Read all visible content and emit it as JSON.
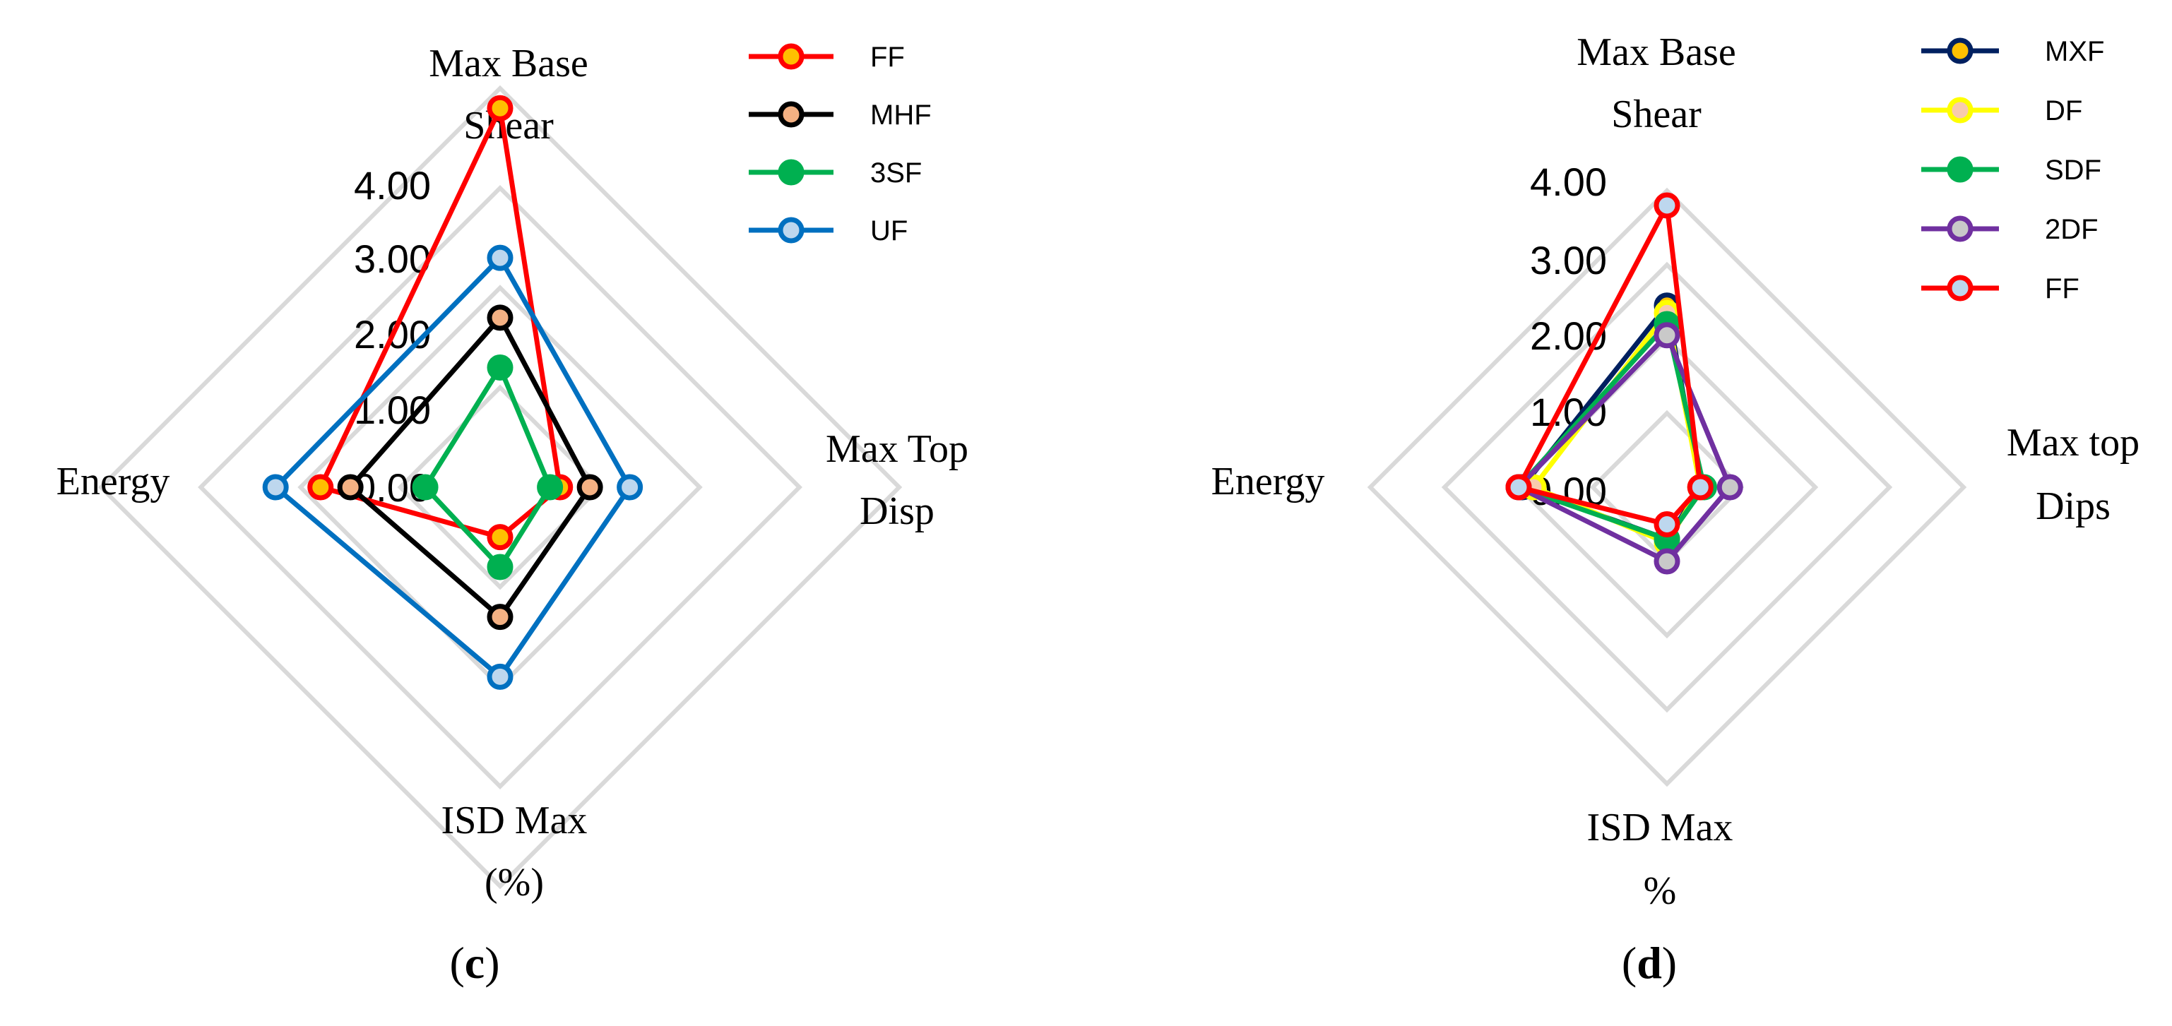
{
  "chart_data": [
    {
      "type": "radar",
      "panel_label": "c",
      "axes": [
        "Max Base Shear",
        "Max Top Disp",
        "ISD Max (%)",
        "Energy"
      ],
      "axis_label_lines": [
        [
          "Max Base",
          "Shear"
        ],
        [
          "Max Top",
          "Disp"
        ],
        [
          "ISD Max",
          "(%)"
        ],
        [
          "Energy"
        ]
      ],
      "rlim": [
        0,
        4
      ],
      "ticks": [
        "0.00",
        "1.00",
        "2.00",
        "3.00",
        "4.00"
      ],
      "grid": true,
      "legend_position": "top-right",
      "series": [
        {
          "name": "FF",
          "values": [
            3.8,
            0.6,
            0.5,
            1.8
          ],
          "line_color": "#ff0000",
          "marker_fill": "#ffc000"
        },
        {
          "name": "MHF",
          "values": [
            1.7,
            0.9,
            1.3,
            1.5
          ],
          "line_color": "#000000",
          "marker_fill": "#f4b183"
        },
        {
          "name": "3SF",
          "values": [
            1.2,
            0.5,
            0.8,
            0.75
          ],
          "line_color": "#00b050",
          "marker_fill": "#00b050"
        },
        {
          "name": "UF",
          "values": [
            2.3,
            1.3,
            1.9,
            2.25
          ],
          "line_color": "#0070c0",
          "marker_fill": "#bdd7ee"
        }
      ]
    },
    {
      "type": "radar",
      "panel_label": "d",
      "axes": [
        "Max Base Shear",
        "Max top Dips",
        "ISD Max %",
        "Energy"
      ],
      "axis_label_lines": [
        [
          "Max Base",
          "Shear"
        ],
        [
          "Max top",
          "Dips"
        ],
        [
          "ISD Max",
          "%"
        ],
        [
          "Energy"
        ]
      ],
      "rlim": [
        0,
        4
      ],
      "ticks": [
        "0.00",
        "1.00",
        "2.00",
        "3.00",
        "4.00"
      ],
      "grid": true,
      "legend_position": "top-right",
      "series": [
        {
          "name": "MXF",
          "values": [
            2.45,
            0.45,
            0.7,
            1.95
          ],
          "line_color": "#002060",
          "marker_fill": "#ffc000"
        },
        {
          "name": "DF",
          "values": [
            2.35,
            0.45,
            0.75,
            1.8
          ],
          "line_color": "#ffff00",
          "marker_fill": "#f8cbad"
        },
        {
          "name": "SDF",
          "values": [
            2.2,
            0.5,
            0.7,
            2.0
          ],
          "line_color": "#00b050",
          "marker_fill": "#00b050"
        },
        {
          "name": "2DF",
          "values": [
            2.05,
            0.85,
            1.0,
            2.0
          ],
          "line_color": "#7030a0",
          "marker_fill": "#c9c9c9"
        },
        {
          "name": "FF",
          "values": [
            3.8,
            0.45,
            0.5,
            2.0
          ],
          "line_color": "#ff0000",
          "marker_fill": "#bdd7ee"
        }
      ]
    }
  ]
}
